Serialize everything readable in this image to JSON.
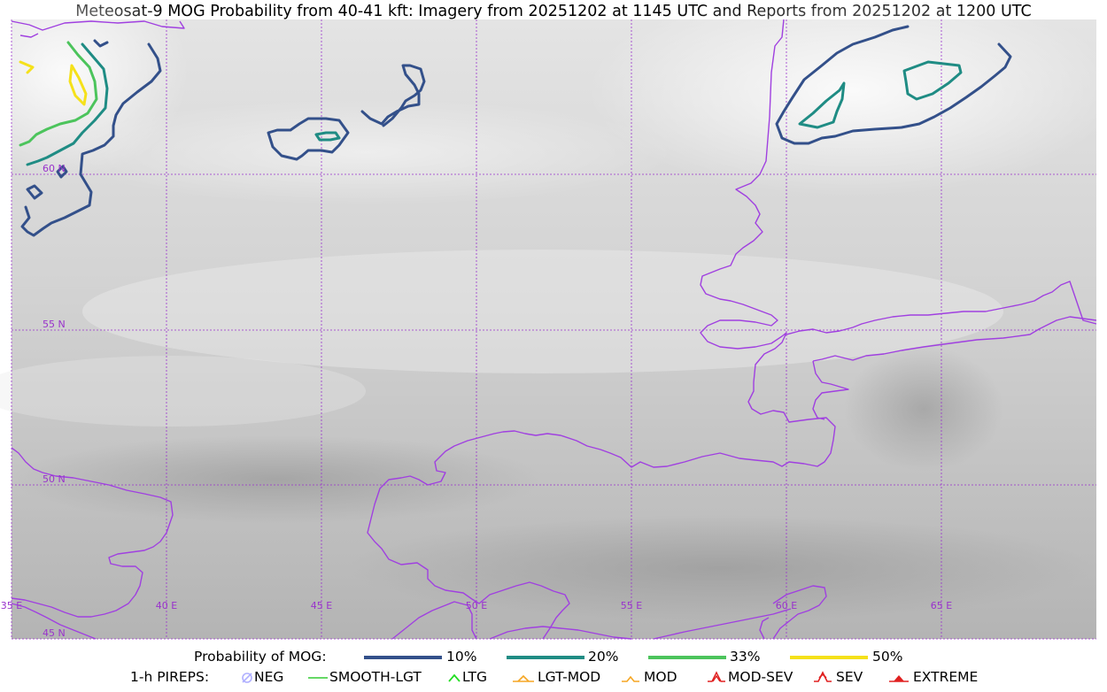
{
  "title": "Meteosat-9 MOG Probability from 40-41 kft: Imagery from 20251202 at 1145 UTC and Reports from 20251202 at 1200 UTC",
  "map": {
    "lat_labels": [
      "60 N",
      "55 N",
      "50 N",
      "45 N"
    ],
    "lon_labels": [
      "35 E",
      "40 E",
      "45 E",
      "50 E",
      "55 E",
      "60 E",
      "65 E"
    ],
    "graticule_color": "#9932cc",
    "coastline_color": "#a040e0"
  },
  "legend": {
    "probability_label": "Probability of MOG:",
    "probability_items": [
      {
        "label": "10%",
        "color": "#33508a"
      },
      {
        "label": "20%",
        "color": "#1f8c84"
      },
      {
        "label": "33%",
        "color": "#4cc45c"
      },
      {
        "label": "50%",
        "color": "#f5e11a"
      }
    ],
    "pirep_label": "1-h PIREPS:",
    "pirep_items": [
      {
        "label": "NEG",
        "icon": "neg-circle-icon",
        "color": "#b0b0ff"
      },
      {
        "label": "SMOOTH-LGT",
        "icon": "line-icon",
        "color": "#33cc33"
      },
      {
        "label": "LTG",
        "icon": "caret-icon",
        "color": "#22dd22"
      },
      {
        "label": "LGT-MOD",
        "icon": "caret-bar-icon",
        "color": "#f5a623"
      },
      {
        "label": "MOD",
        "icon": "caret-icon",
        "color": "#f5a623"
      },
      {
        "label": "MOD-SEV",
        "icon": "double-caret-icon",
        "color": "#e02020"
      },
      {
        "label": "SEV",
        "icon": "double-caret-icon",
        "color": "#e02020"
      },
      {
        "label": "EXTREME",
        "icon": "filled-caret-icon",
        "color": "#e02020"
      }
    ]
  }
}
